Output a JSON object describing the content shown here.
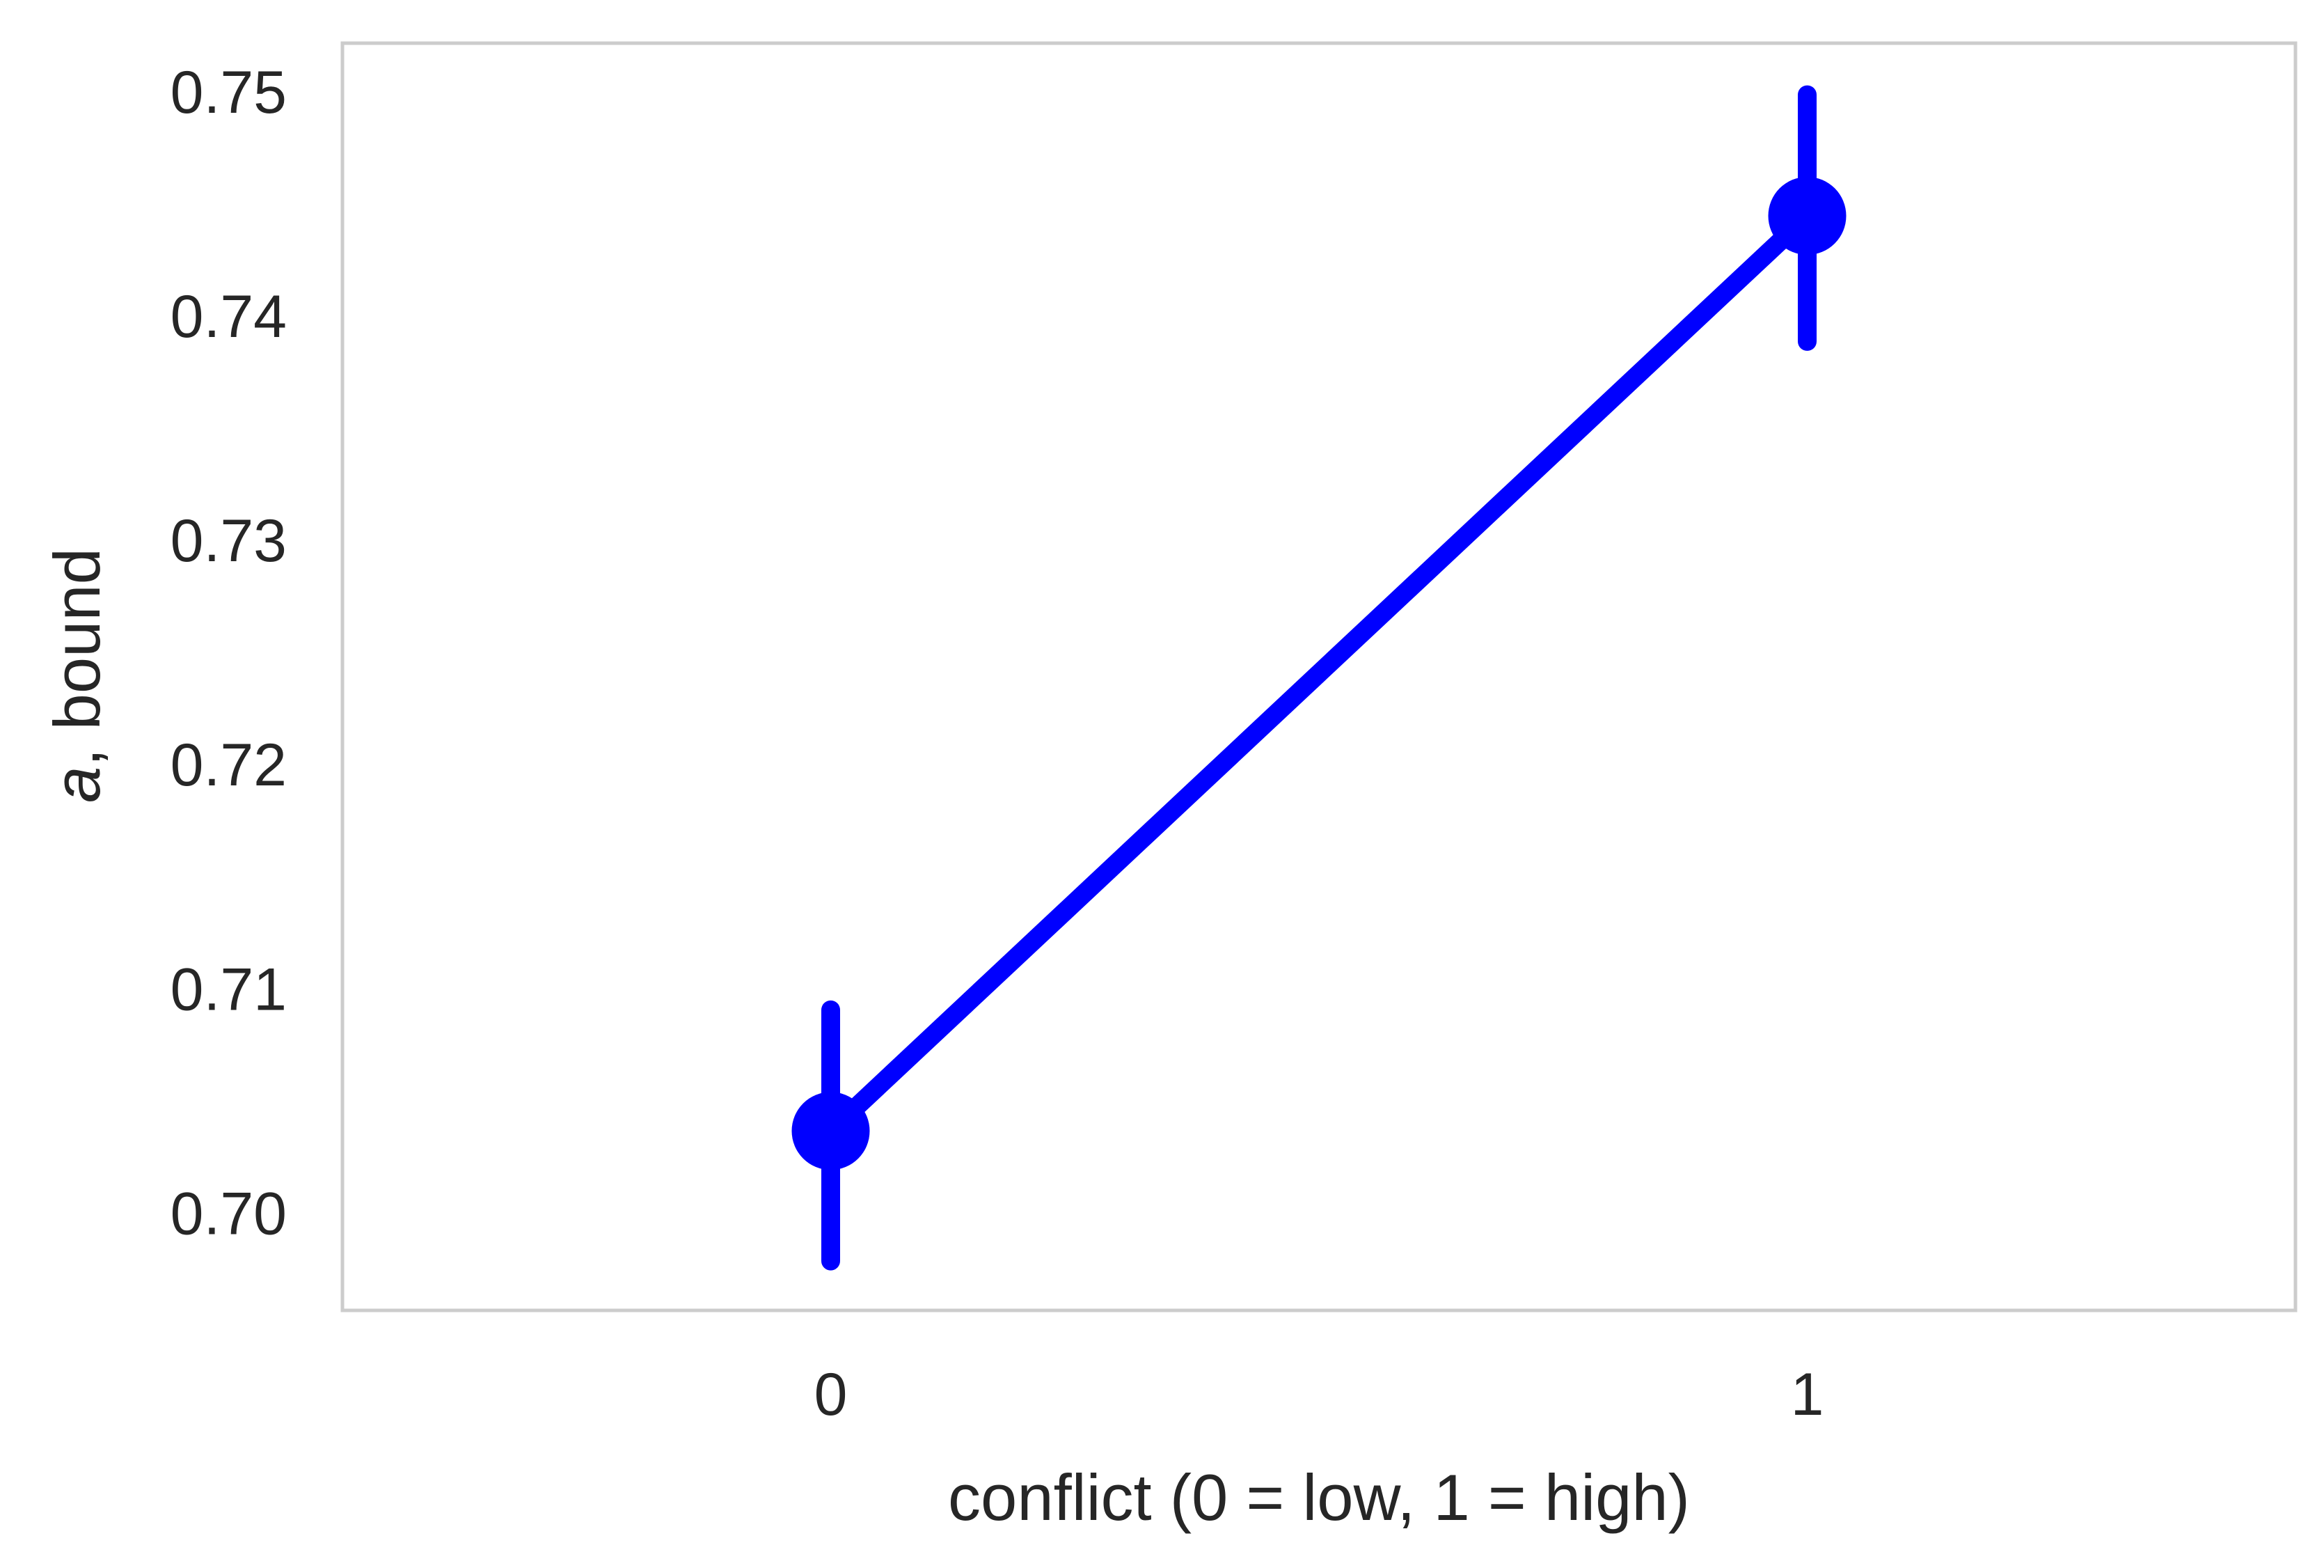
{
  "chart_data": {
    "type": "line",
    "title": "",
    "xlabel": "conflict (0 = low, 1 = high)",
    "ylabel_italic": "a",
    "ylabel_rest": ", bound",
    "categories": [
      "0",
      "1"
    ],
    "series": [
      {
        "values": [
          0.7037,
          0.7445
        ],
        "error_low": [
          0.6979,
          0.7389
        ],
        "error_high": [
          0.7091,
          0.7499
        ]
      }
    ],
    "ylim": [
      0.6957,
      0.7522
    ],
    "yticks": [
      0.7,
      0.71,
      0.72,
      0.73,
      0.74,
      0.75
    ],
    "ytick_labels": [
      "0.70",
      "0.71",
      "0.72",
      "0.73",
      "0.74",
      "0.75"
    ],
    "grid": false,
    "legend": "none",
    "colors": {
      "series": "#0000ff",
      "frame": "#cccccc",
      "text": "#262626"
    }
  }
}
